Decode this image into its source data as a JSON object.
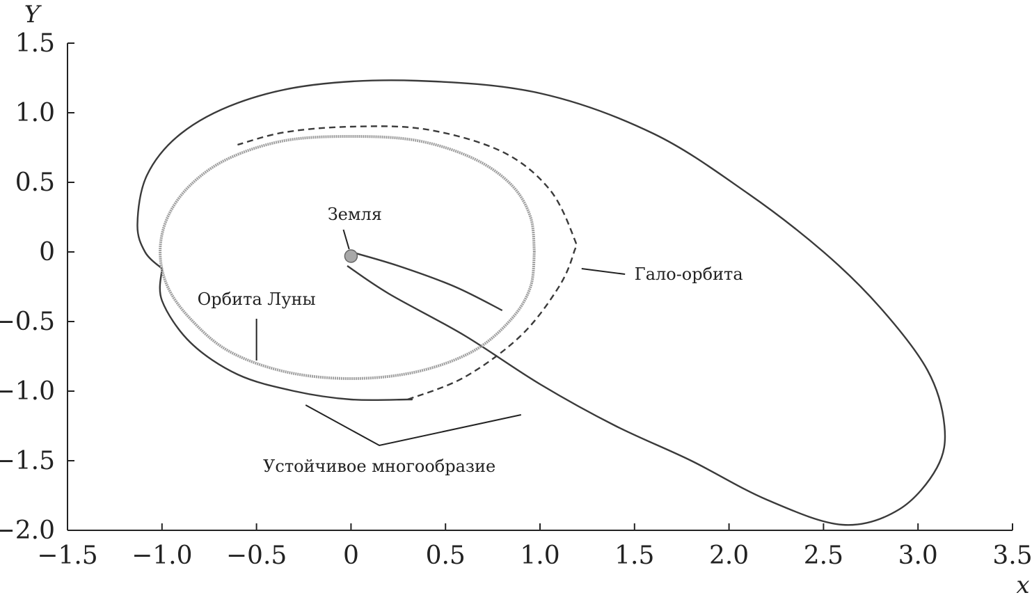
{
  "chart_data": {
    "type": "line",
    "xlabel": "x",
    "ylabel": "Y",
    "xlim": [
      -1.5,
      3.5
    ],
    "ylim": [
      -2.0,
      1.5
    ],
    "xticks": [
      "−1.5",
      "−1.0",
      "−0.5",
      "0",
      "0.5",
      "1.0",
      "1.5",
      "2.0",
      "2.5",
      "3.0",
      "3.5"
    ],
    "yticks": [
      "1.5",
      "1.0",
      "0.5",
      "0",
      "−0.5",
      "−1.0",
      "−1.5",
      "−2.0"
    ],
    "xtick_values": [
      -1.5,
      -1.0,
      -0.5,
      0,
      0.5,
      1.0,
      1.5,
      2.0,
      2.5,
      3.0,
      3.5
    ],
    "ytick_values": [
      1.5,
      1.0,
      0.5,
      0,
      -0.5,
      -1.0,
      -1.5,
      -2.0
    ],
    "grid": false,
    "series": [
      {
        "style": "solid-dark",
        "points": [
          [
            0.0,
            0.0
          ],
          [
            0.25,
            -0.1
          ],
          [
            0.55,
            -0.25
          ],
          [
            0.8,
            -0.42
          ]
        ]
      },
      {
        "style": "solid-dark",
        "points": [
          [
            -0.02,
            -0.1
          ],
          [
            0.2,
            -0.3
          ],
          [
            0.6,
            -0.6
          ],
          [
            1.0,
            -0.95
          ],
          [
            1.4,
            -1.25
          ],
          [
            1.8,
            -1.5
          ],
          [
            2.2,
            -1.78
          ],
          [
            2.6,
            -1.96
          ],
          [
            2.9,
            -1.85
          ],
          [
            3.1,
            -1.55
          ],
          [
            3.14,
            -1.25
          ],
          [
            3.05,
            -0.85
          ],
          [
            2.8,
            -0.4
          ],
          [
            2.5,
            0.0
          ],
          [
            2.1,
            0.42
          ],
          [
            1.6,
            0.85
          ],
          [
            1.0,
            1.14
          ],
          [
            0.35,
            1.23
          ],
          [
            -0.2,
            1.2
          ],
          [
            -0.6,
            1.07
          ],
          [
            -0.9,
            0.85
          ],
          [
            -1.08,
            0.55
          ],
          [
            -1.13,
            0.2
          ],
          [
            -1.09,
            0.0
          ],
          [
            -1.0,
            -0.12
          ]
        ]
      },
      {
        "style": "solid-dark",
        "points": [
          [
            -1.0,
            -0.12
          ],
          [
            -1.0,
            -0.35
          ],
          [
            -0.85,
            -0.65
          ],
          [
            -0.6,
            -0.88
          ],
          [
            -0.3,
            -1.0
          ],
          [
            0.0,
            -1.06
          ],
          [
            0.3,
            -1.06
          ],
          [
            0.3,
            -1.06
          ]
        ]
      },
      {
        "style": "dashed",
        "points": [
          [
            0.3,
            -1.06
          ],
          [
            0.6,
            -0.9
          ],
          [
            0.9,
            -0.6
          ],
          [
            1.1,
            -0.25
          ],
          [
            1.18,
            0.0
          ],
          [
            1.18,
            0.1
          ],
          [
            1.05,
            0.45
          ],
          [
            0.8,
            0.72
          ],
          [
            0.4,
            0.88
          ],
          [
            0.0,
            0.9
          ],
          [
            -0.35,
            0.86
          ],
          [
            -0.6,
            0.77
          ]
        ]
      },
      {
        "style": "moon",
        "points": [
          [
            0.97,
            0.0
          ],
          [
            0.95,
            0.25
          ],
          [
            0.85,
            0.48
          ],
          [
            0.65,
            0.67
          ],
          [
            0.35,
            0.8
          ],
          [
            0.0,
            0.83
          ],
          [
            -0.35,
            0.8
          ],
          [
            -0.65,
            0.67
          ],
          [
            -0.85,
            0.48
          ],
          [
            -0.97,
            0.25
          ],
          [
            -1.01,
            0.0
          ],
          [
            -0.97,
            -0.25
          ],
          [
            -0.85,
            -0.48
          ],
          [
            -0.65,
            -0.71
          ],
          [
            -0.35,
            -0.86
          ],
          [
            0.0,
            -0.91
          ],
          [
            0.35,
            -0.86
          ],
          [
            0.65,
            -0.71
          ],
          [
            0.85,
            -0.48
          ],
          [
            0.95,
            -0.25
          ],
          [
            0.97,
            0.0
          ]
        ]
      }
    ],
    "earth": {
      "x": 0.0,
      "y": -0.03,
      "color": "#a8a8a8"
    },
    "annotations": [
      {
        "text": "Земля",
        "x": 0.02,
        "y": 0.27,
        "anchor": "middle",
        "leader": [
          [
            -0.04,
            0.16
          ],
          [
            -0.01,
            0.02
          ]
        ]
      },
      {
        "text": "Гало-орбита",
        "x": 1.5,
        "y": -0.16,
        "anchor": "start",
        "leader": [
          [
            1.22,
            -0.12
          ],
          [
            1.45,
            -0.16
          ]
        ]
      },
      {
        "text": "Орбита Луны",
        "x": -0.5,
        "y": -0.34,
        "anchor": "middle",
        "leader": [
          [
            -0.5,
            -0.48
          ],
          [
            -0.5,
            -0.78
          ]
        ]
      },
      {
        "text": "Устойчивое многообразие",
        "x": 0.15,
        "y": -1.54,
        "anchor": "middle",
        "leader": [
          [
            -0.24,
            -1.1
          ],
          [
            0.15,
            -1.39
          ],
          [
            0.9,
            -1.17
          ]
        ]
      }
    ],
    "colors": {
      "axis": "#222222",
      "curve": "#3a3a3a",
      "moon": "#a0a0a0",
      "earth": "#a8a8a8"
    }
  }
}
